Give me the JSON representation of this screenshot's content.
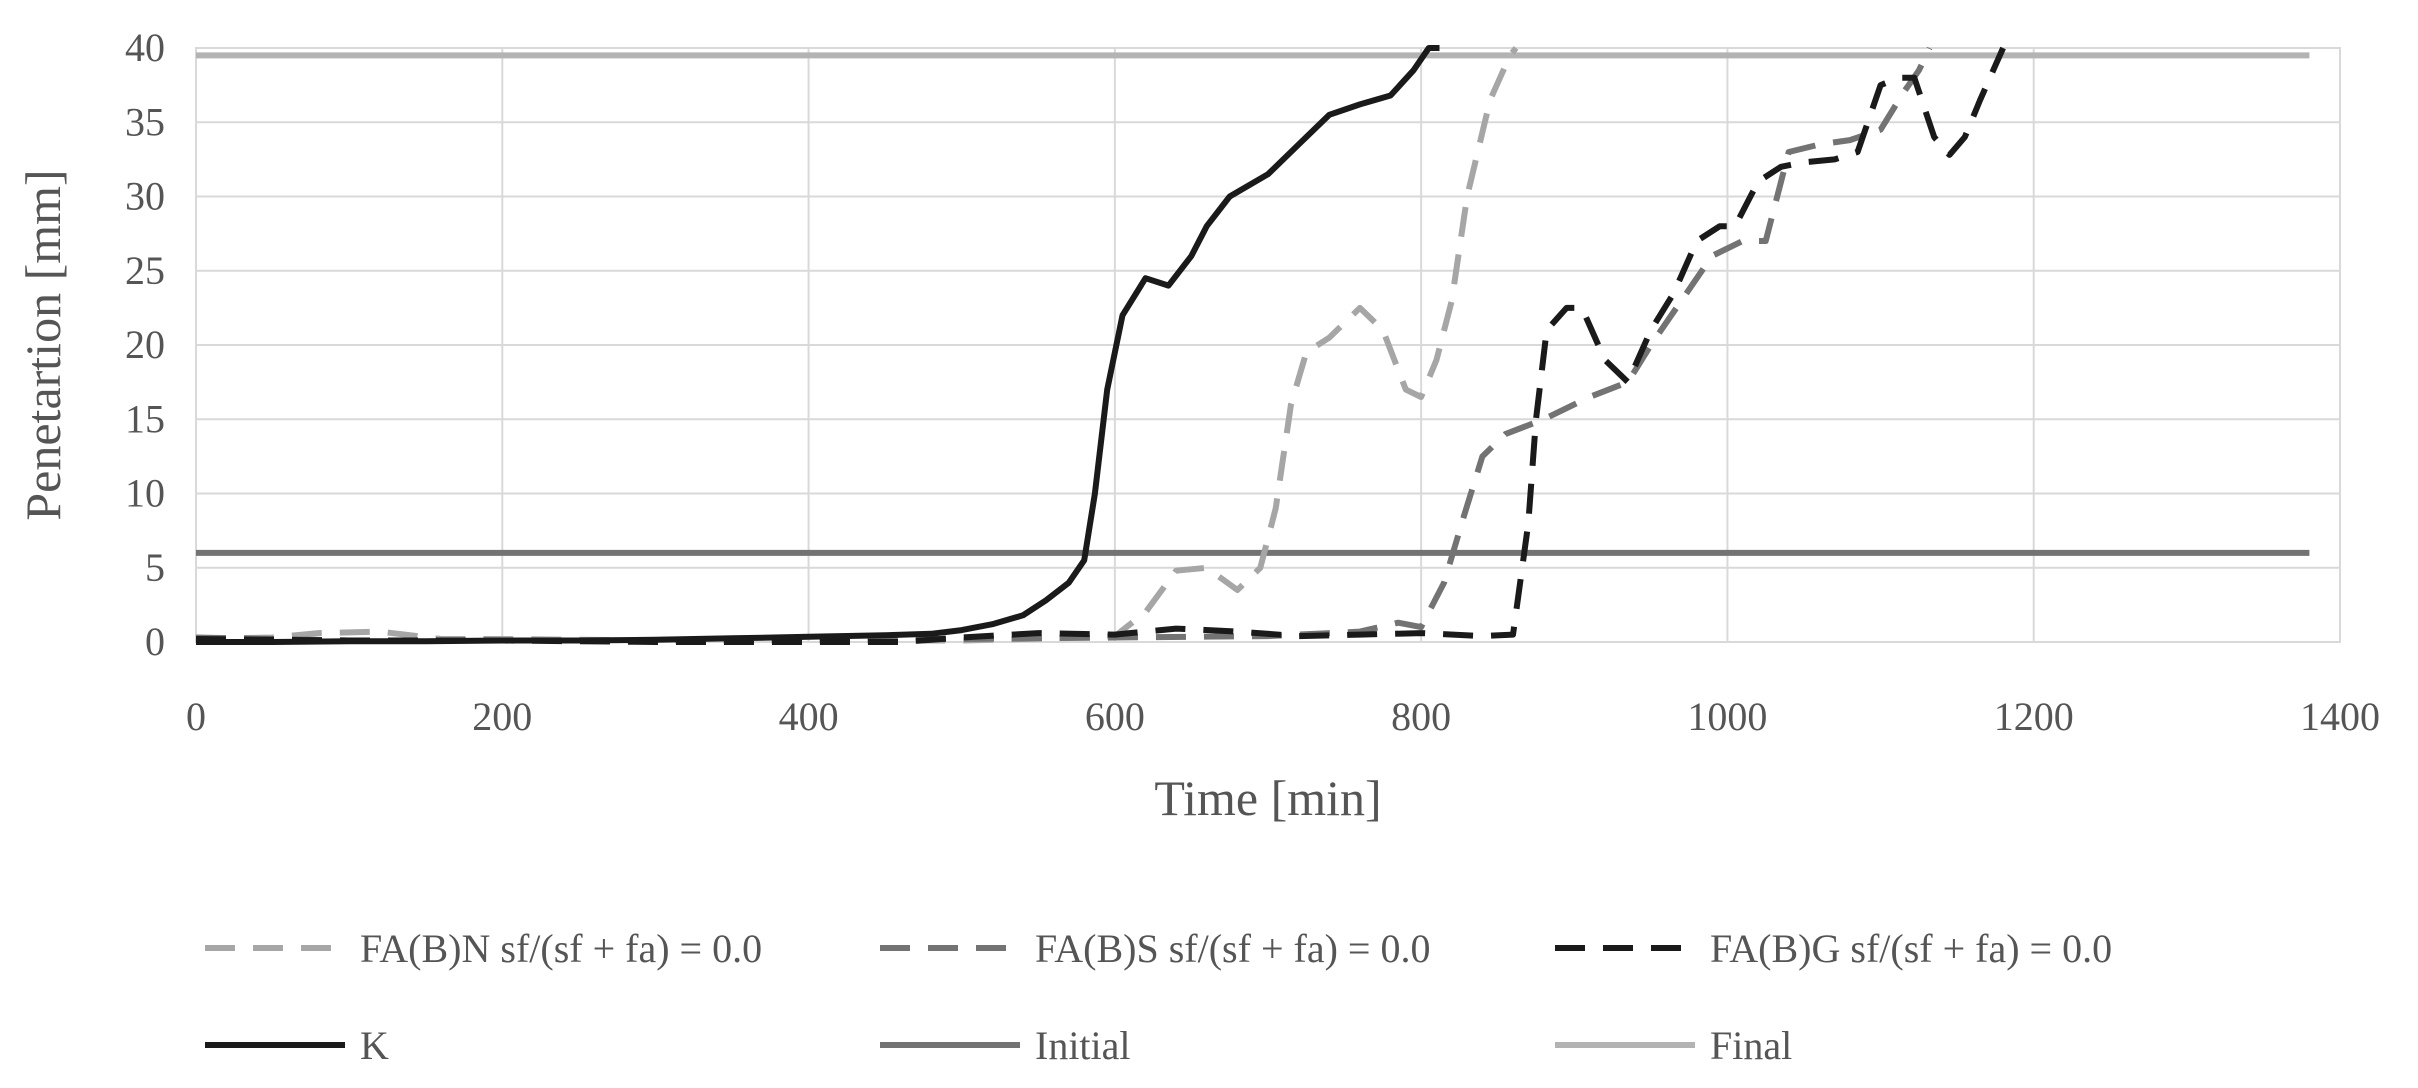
{
  "chart_data": {
    "type": "line",
    "title": "",
    "xlabel": "Time [min]",
    "ylabel": "Penetartion [mm]",
    "xlim": [
      0,
      1400
    ],
    "ylim": [
      0,
      40
    ],
    "x_ticks": [
      0,
      200,
      400,
      600,
      800,
      1000,
      1200,
      1400
    ],
    "y_ticks": [
      0,
      5,
      10,
      15,
      20,
      25,
      30,
      35,
      40
    ],
    "grid": true,
    "legend_position": "bottom",
    "series": [
      {
        "name": "FA(B)N sf/(sf + fa) = 0.0",
        "color": "#a6a6a6",
        "style": "dashed",
        "points": [
          [
            0,
            0.2
          ],
          [
            50,
            0.3
          ],
          [
            80,
            0.6
          ],
          [
            120,
            0.7
          ],
          [
            160,
            0.2
          ],
          [
            200,
            0.2
          ],
          [
            300,
            0.1
          ],
          [
            400,
            0.1
          ],
          [
            500,
            0.1
          ],
          [
            580,
            0.3
          ],
          [
            600,
            0.4
          ],
          [
            620,
            2.0
          ],
          [
            640,
            4.8
          ],
          [
            660,
            5.0
          ],
          [
            680,
            3.5
          ],
          [
            695,
            5.0
          ],
          [
            705,
            9.0
          ],
          [
            715,
            16.0
          ],
          [
            725,
            19.5
          ],
          [
            740,
            20.5
          ],
          [
            760,
            22.5
          ],
          [
            775,
            21.0
          ],
          [
            790,
            17.0
          ],
          [
            800,
            16.5
          ],
          [
            810,
            19.0
          ],
          [
            820,
            23.0
          ],
          [
            830,
            30.0
          ],
          [
            845,
            36.5
          ],
          [
            858,
            39.5
          ],
          [
            862,
            40.0
          ]
        ]
      },
      {
        "name": "FA(B)S sf/(sf + fa) = 0.0",
        "color": "#737373",
        "style": "dashed",
        "points": [
          [
            0,
            0.3
          ],
          [
            100,
            0.1
          ],
          [
            200,
            0.1
          ],
          [
            300,
            0.1
          ],
          [
            400,
            0.2
          ],
          [
            500,
            0.2
          ],
          [
            600,
            0.3
          ],
          [
            700,
            0.4
          ],
          [
            760,
            0.7
          ],
          [
            785,
            1.3
          ],
          [
            800,
            1.0
          ],
          [
            815,
            4.0
          ],
          [
            828,
            8.5
          ],
          [
            840,
            12.5
          ],
          [
            855,
            14.0
          ],
          [
            880,
            15.0
          ],
          [
            910,
            16.5
          ],
          [
            935,
            17.5
          ],
          [
            950,
            20.0
          ],
          [
            970,
            23.0
          ],
          [
            990,
            26.0
          ],
          [
            1010,
            27.0
          ],
          [
            1025,
            27.0
          ],
          [
            1040,
            33.0
          ],
          [
            1060,
            33.5
          ],
          [
            1080,
            33.8
          ],
          [
            1100,
            34.5
          ],
          [
            1115,
            37.0
          ],
          [
            1125,
            38.5
          ],
          [
            1132,
            40.0
          ]
        ]
      },
      {
        "name": "FA(B)G sf/(sf + fa) = 0.0",
        "color": "#1a1a1a",
        "style": "dashed",
        "points": [
          [
            0,
            0.2
          ],
          [
            100,
            0.1
          ],
          [
            200,
            0.1
          ],
          [
            300,
            0.0
          ],
          [
            400,
            0.0
          ],
          [
            460,
            0.0
          ],
          [
            500,
            0.3
          ],
          [
            550,
            0.6
          ],
          [
            600,
            0.5
          ],
          [
            640,
            0.9
          ],
          [
            680,
            0.7
          ],
          [
            720,
            0.4
          ],
          [
            760,
            0.5
          ],
          [
            800,
            0.6
          ],
          [
            840,
            0.4
          ],
          [
            860,
            0.5
          ],
          [
            870,
            8.0
          ],
          [
            875,
            15.0
          ],
          [
            882,
            21.0
          ],
          [
            895,
            22.5
          ],
          [
            905,
            22.5
          ],
          [
            920,
            19.0
          ],
          [
            935,
            17.5
          ],
          [
            950,
            21.0
          ],
          [
            965,
            23.5
          ],
          [
            980,
            27.0
          ],
          [
            995,
            28.0
          ],
          [
            1005,
            28.0
          ],
          [
            1020,
            31.0
          ],
          [
            1035,
            32.0
          ],
          [
            1050,
            32.3
          ],
          [
            1070,
            32.5
          ],
          [
            1085,
            33.0
          ],
          [
            1100,
            37.5
          ],
          [
            1112,
            38.0
          ],
          [
            1122,
            38.0
          ],
          [
            1135,
            34.0
          ],
          [
            1145,
            32.8
          ],
          [
            1155,
            34.0
          ],
          [
            1165,
            36.5
          ],
          [
            1180,
            40.0
          ]
        ]
      },
      {
        "name": "K",
        "color": "#1a1a1a",
        "style": "solid",
        "points": [
          [
            0,
            0.0
          ],
          [
            50,
            0.0
          ],
          [
            100,
            0.05
          ],
          [
            150,
            0.05
          ],
          [
            200,
            0.1
          ],
          [
            250,
            0.1
          ],
          [
            300,
            0.15
          ],
          [
            350,
            0.25
          ],
          [
            400,
            0.35
          ],
          [
            450,
            0.45
          ],
          [
            480,
            0.55
          ],
          [
            500,
            0.8
          ],
          [
            520,
            1.2
          ],
          [
            540,
            1.8
          ],
          [
            555,
            2.8
          ],
          [
            570,
            4.0
          ],
          [
            580,
            5.5
          ],
          [
            587,
            10.0
          ],
          [
            595,
            17.0
          ],
          [
            605,
            22.0
          ],
          [
            620,
            24.5
          ],
          [
            635,
            24.0
          ],
          [
            650,
            26.0
          ],
          [
            660,
            28.0
          ],
          [
            675,
            30.0
          ],
          [
            700,
            31.5
          ],
          [
            720,
            33.5
          ],
          [
            740,
            35.5
          ],
          [
            760,
            36.2
          ],
          [
            780,
            36.8
          ],
          [
            795,
            38.5
          ],
          [
            805,
            40.0
          ],
          [
            812,
            40.0
          ]
        ]
      },
      {
        "name": "Initial",
        "color": "#737373",
        "style": "solid",
        "points": [
          [
            0,
            6.0
          ],
          [
            1380,
            6.0
          ]
        ]
      },
      {
        "name": "Final",
        "color": "#b3b3b3",
        "style": "solid",
        "points": [
          [
            0,
            39.5
          ],
          [
            1380,
            39.5
          ]
        ]
      }
    ]
  }
}
